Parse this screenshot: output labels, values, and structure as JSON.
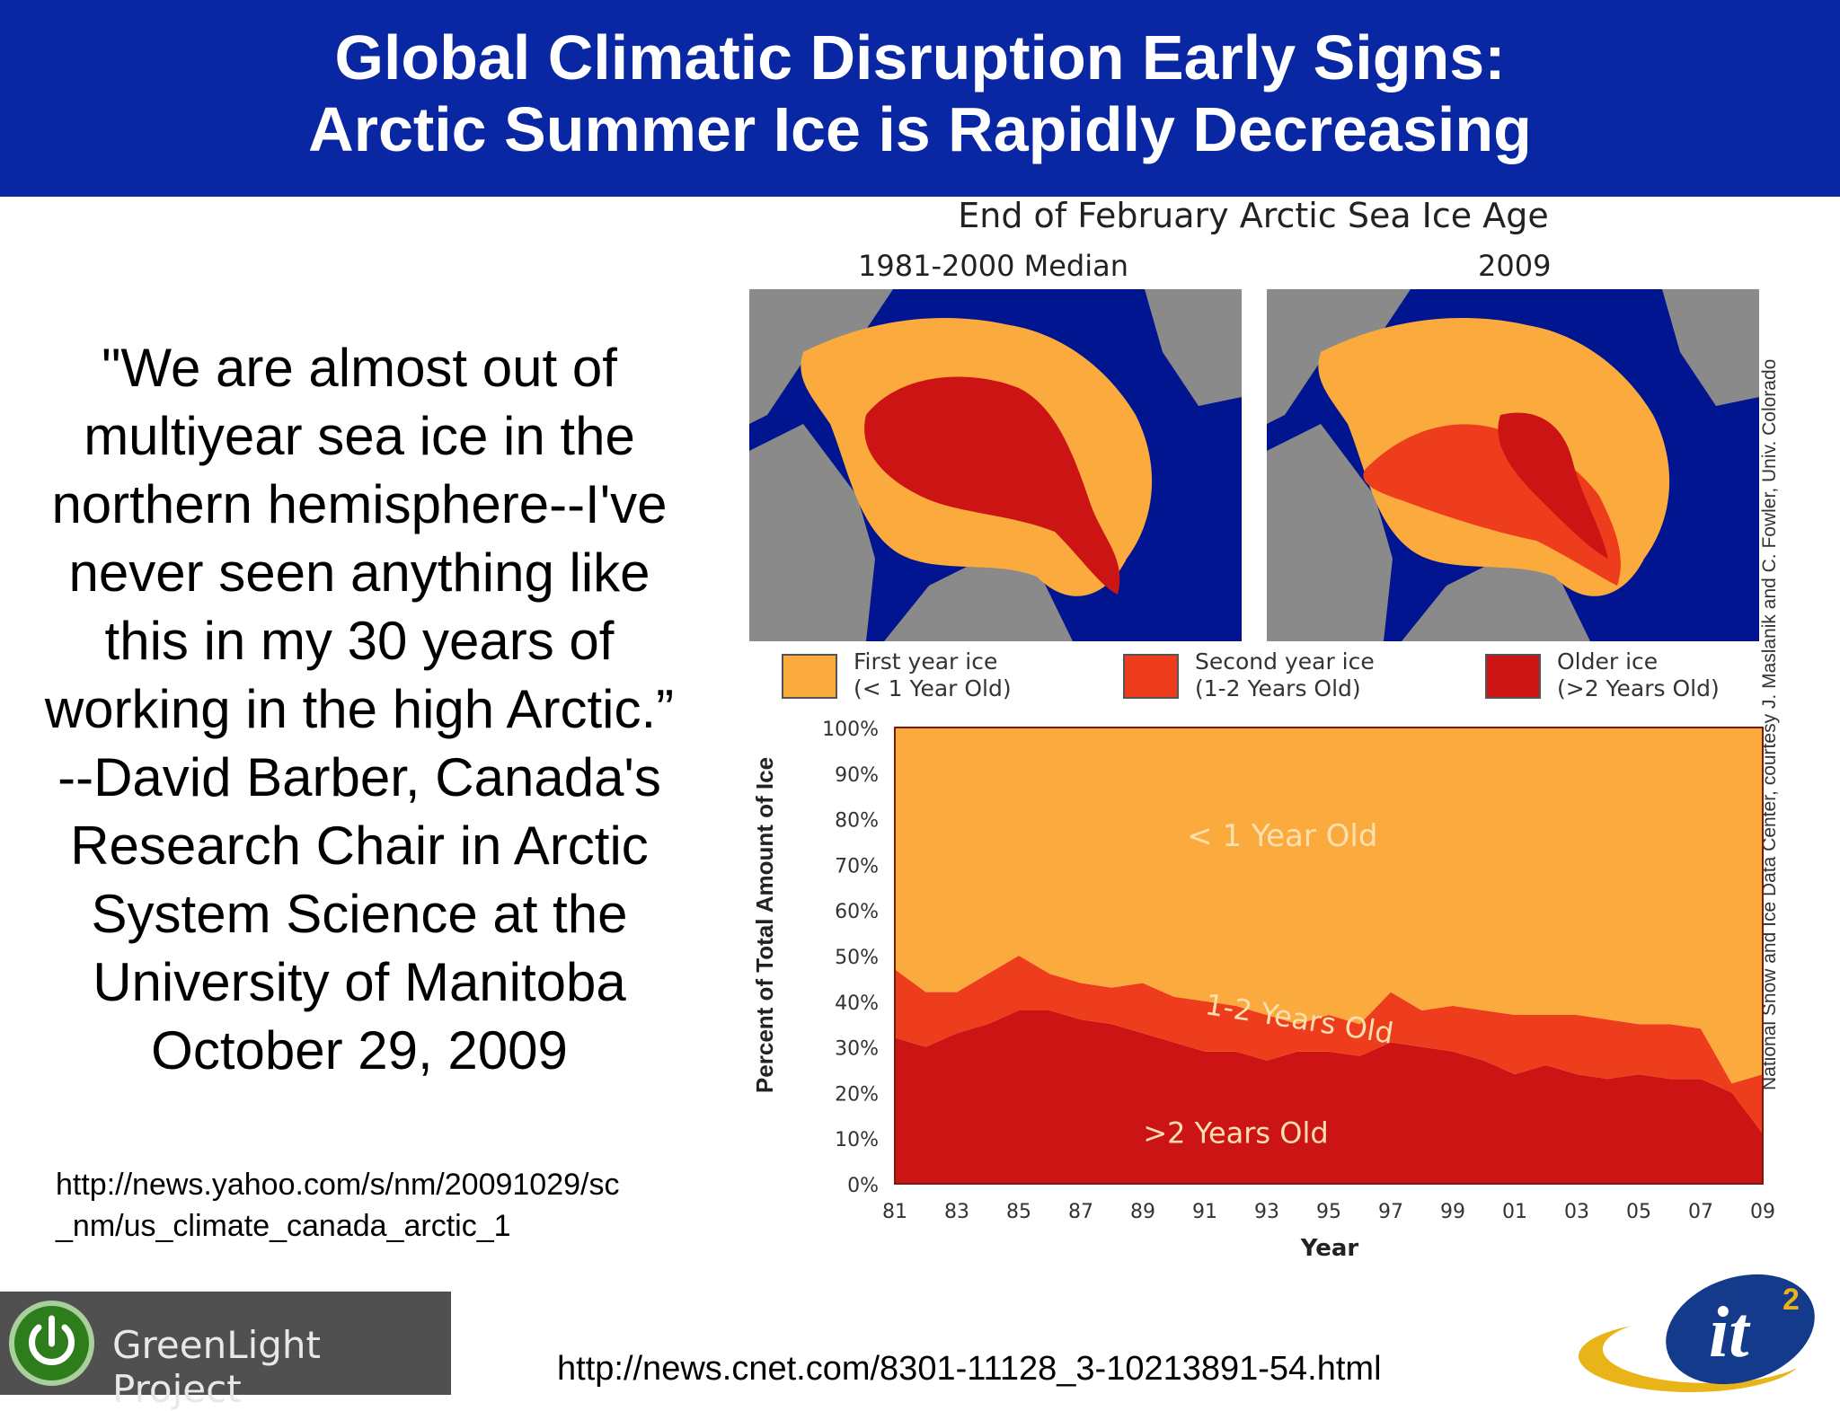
{
  "slide": {
    "title_line1": "Global Climatic Disruption Early Signs:",
    "title_line2": "Arctic Summer Ice is Rapidly Decreasing",
    "quote_lines": [
      "\"We are almost out of",
      "multiyear sea ice in the",
      "northern hemisphere--I've",
      "never seen anything like",
      "this in my 30 years of",
      "working in the high Arctic.”",
      "--David Barber, Canada's",
      "Research Chair in Arctic",
      "System Science at the",
      "University of Manitoba",
      "October 29, 2009"
    ],
    "source_link_line1": "http://news.yahoo.com/s/nm/20091029/sc",
    "source_link_line2": "_nm/us_climate_canada_arctic_1",
    "footer_link": "http://news.cnet.com/8301-11128_3-10213891-54.html",
    "greenlight_label": "GreenLight Project",
    "it2_logo_text": "it",
    "it2_logo_sup": "2",
    "banner_color": "#0a27a3"
  },
  "figure": {
    "title": "End of February Arctic Sea Ice Age",
    "map_left_label": "1981-2000 Median",
    "map_right_label": "2009",
    "credit": "National Snow and Ice Data Center, courtesy J. Maslanik and C. Fowler, Univ. Colorado",
    "legend": [
      {
        "line1": "First year ice",
        "line2": "(< 1 Year Old)",
        "color": "#fbaa3e"
      },
      {
        "line1": "Second year ice",
        "line2": "(1-2 Years Old)",
        "color": "#ee3d1c"
      },
      {
        "line1": "Older ice",
        "line2": "(>2 Years Old)",
        "color": "#cc1414"
      }
    ]
  },
  "chart_data": {
    "type": "area",
    "stacked": true,
    "ylabel": "Percent of Total Amount of Ice",
    "xlabel": "Year",
    "x": [
      1981,
      1982,
      1983,
      1984,
      1985,
      1986,
      1987,
      1988,
      1989,
      1990,
      1991,
      1992,
      1993,
      1994,
      1995,
      1996,
      1997,
      1998,
      1999,
      2000,
      2001,
      2002,
      2003,
      2004,
      2005,
      2006,
      2007,
      2008,
      2009
    ],
    "xticks": [
      "81",
      "83",
      "85",
      "87",
      "89",
      "91",
      "93",
      "95",
      "97",
      "99",
      "01",
      "03",
      "05",
      "07",
      "09"
    ],
    "yticks": [
      "0%",
      "10%",
      "20%",
      "30%",
      "40%",
      "50%",
      "60%",
      "70%",
      "80%",
      "90%",
      "100%"
    ],
    "ylim": [
      0,
      100
    ],
    "series": [
      {
        "name": ">2 Years Old",
        "color": "#cc1414",
        "values": [
          32,
          30,
          33,
          35,
          38,
          38,
          36,
          35,
          33,
          31,
          29,
          29,
          27,
          29,
          29,
          28,
          31,
          30,
          29,
          27,
          24,
          26,
          24,
          23,
          24,
          23,
          23,
          20,
          11
        ]
      },
      {
        "name": "1-2 Years Old",
        "color": "#ee3d1c",
        "values": [
          15,
          12,
          9,
          11,
          12,
          8,
          8,
          8,
          11,
          10,
          11,
          10,
          10,
          6,
          8,
          7,
          11,
          8,
          10,
          11,
          13,
          11,
          13,
          13,
          11,
          12,
          11,
          2,
          13
        ]
      },
      {
        "name": "< 1 Year Old",
        "color": "#fbaa3e",
        "values": [
          53,
          58,
          58,
          54,
          50,
          54,
          56,
          57,
          56,
          59,
          60,
          61,
          63,
          65,
          63,
          65,
          58,
          62,
          61,
          62,
          63,
          63,
          63,
          64,
          65,
          65,
          66,
          78,
          76
        ]
      }
    ],
    "annotations": [
      "< 1 Year Old",
      "1-2 Years Old",
      ">2 Years Old"
    ]
  }
}
